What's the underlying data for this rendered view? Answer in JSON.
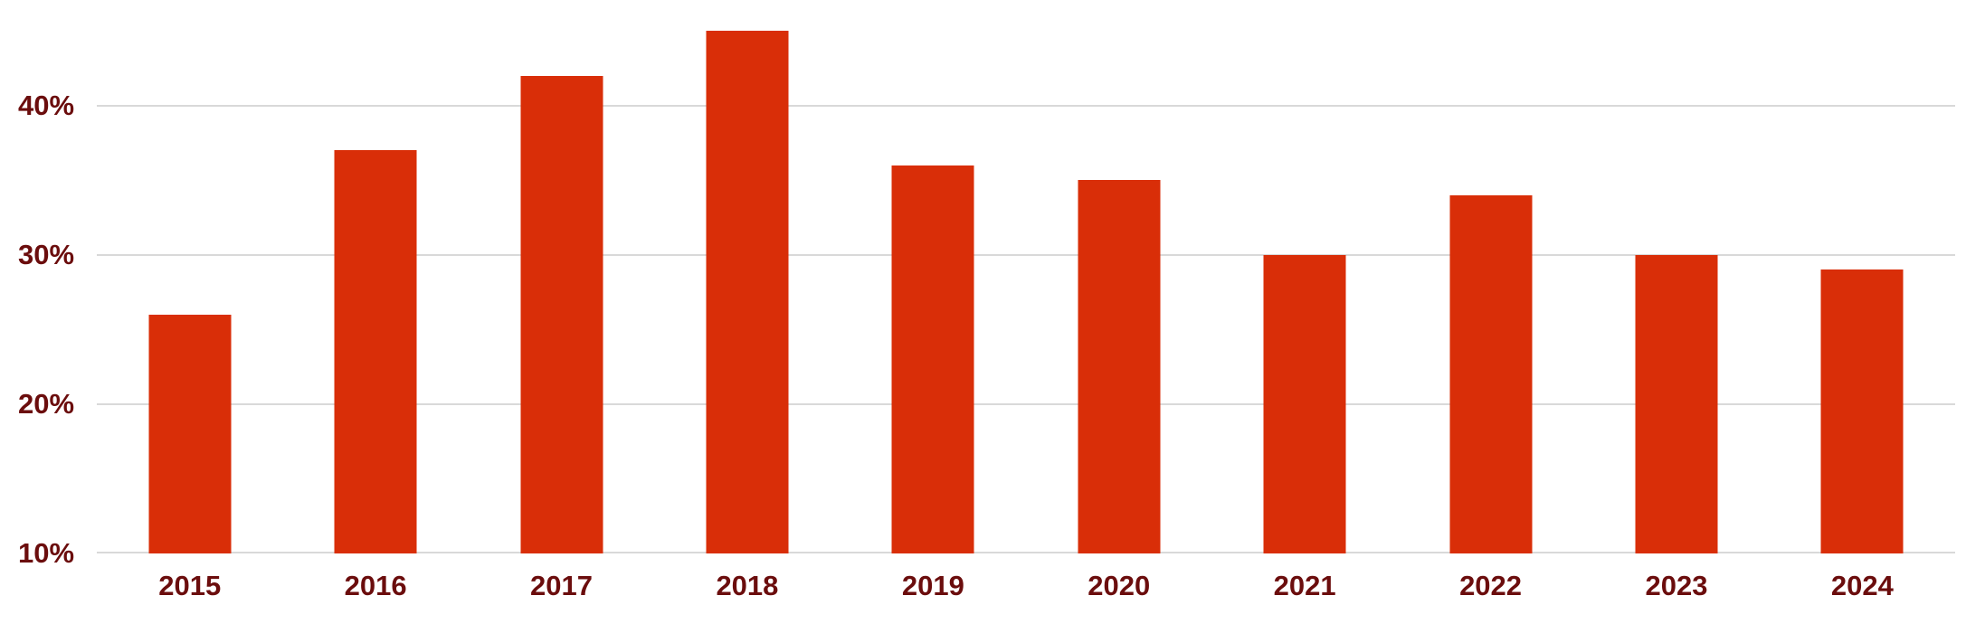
{
  "chart_data": {
    "type": "bar",
    "categories": [
      "2015",
      "2016",
      "2017",
      "2018",
      "2019",
      "2020",
      "2021",
      "2022",
      "2023",
      "2024"
    ],
    "values": [
      26,
      37,
      42,
      45,
      36,
      35,
      30,
      34,
      30,
      29
    ],
    "value_suffix": "%",
    "title": "",
    "xlabel": "",
    "ylabel": "",
    "ylim": [
      10,
      47.06
    ],
    "y_tick_values": [
      40,
      30,
      20,
      10
    ],
    "y_tick_labels": [
      "40%",
      "30%",
      "20%",
      "10%"
    ],
    "grid": true,
    "legend": "none",
    "colors": {
      "bar": "#d92e08",
      "axis_text": "#6b0d0d",
      "gridline": "#d9d9d9",
      "background": "#ffffff"
    }
  }
}
